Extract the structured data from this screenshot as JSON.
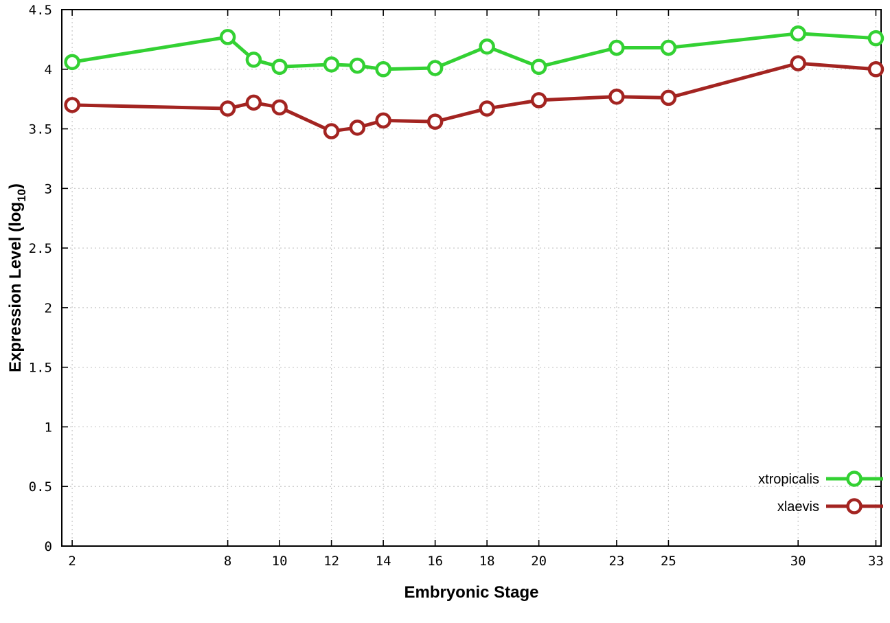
{
  "chart_data": {
    "type": "line",
    "title": "",
    "xlabel": "Embryonic Stage",
    "ylabel": "Expression Level (log10)",
    "ylabel_parts": {
      "main": "Expression Level (log",
      "sub": "10",
      "end": ")"
    },
    "x": [
      2,
      8,
      9,
      10,
      12,
      13,
      14,
      16,
      18,
      20,
      23,
      25,
      30,
      33
    ],
    "xticks": [
      2,
      8,
      10,
      12,
      14,
      16,
      18,
      20,
      23,
      25,
      30,
      33
    ],
    "yticks": [
      0,
      0.5,
      1,
      1.5,
      2,
      2.5,
      3,
      3.5,
      4,
      4.5
    ],
    "xlim": [
      1.6,
      33.2
    ],
    "ylim": [
      0,
      4.5
    ],
    "grid": true,
    "legend_position": "bottom-right",
    "series": [
      {
        "name": "xtropicalis",
        "color": "#33d133",
        "values": [
          4.06,
          4.27,
          4.08,
          4.02,
          4.04,
          4.03,
          4.0,
          4.01,
          4.19,
          4.02,
          4.18,
          4.18,
          4.3,
          4.26
        ]
      },
      {
        "name": "xlaevis",
        "color": "#a32421",
        "values": [
          3.7,
          3.67,
          3.72,
          3.68,
          3.48,
          3.51,
          3.57,
          3.56,
          3.67,
          3.74,
          3.77,
          3.76,
          4.05,
          4.0
        ]
      }
    ]
  }
}
